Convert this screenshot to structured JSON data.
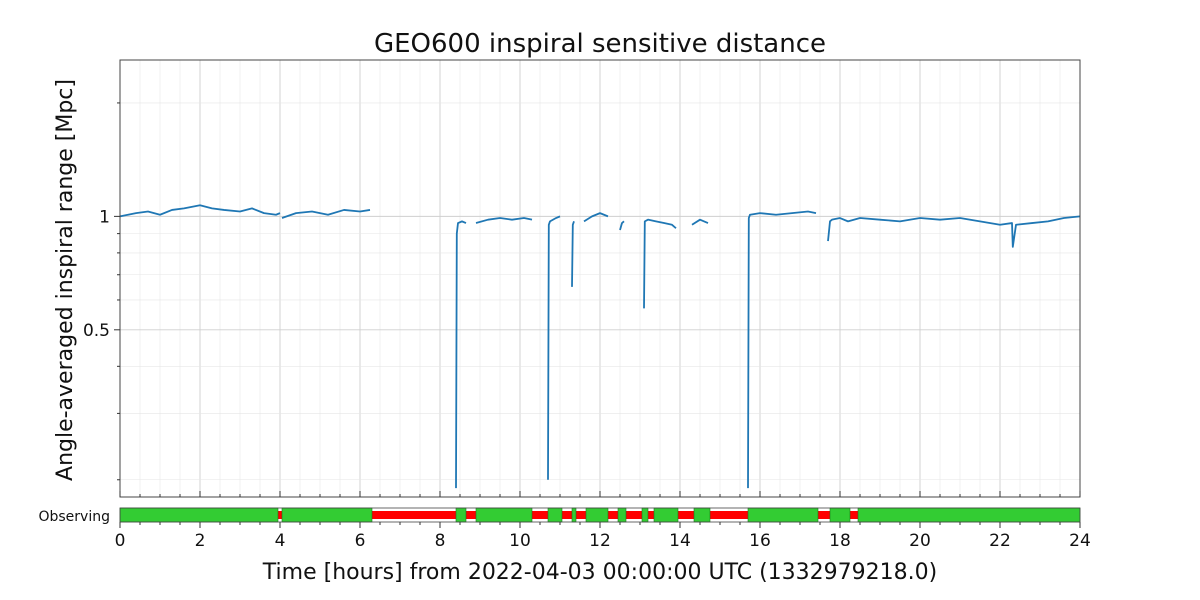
{
  "chart_data": {
    "type": "line",
    "title": "GEO600 inspiral sensitive distance",
    "xlabel": "Time [hours] from 2022-04-03 00:00:00 UTC (1332979218.0)",
    "ylabel": "Angle-averaged inspiral range [Mpc]",
    "xlim": [
      0,
      24
    ],
    "ylim": [
      0.18,
      2.6
    ],
    "yscale": "log",
    "grid": true,
    "x_ticks": [
      0,
      2,
      4,
      6,
      8,
      10,
      12,
      14,
      16,
      18,
      20,
      22,
      24
    ],
    "x_tick_labels": [
      "0",
      "2",
      "4",
      "6",
      "8",
      "10",
      "12",
      "14",
      "16",
      "18",
      "20",
      "22",
      "24"
    ],
    "y_ticks": [
      0.5,
      1
    ],
    "y_tick_labels": [
      "0.5",
      "1"
    ],
    "series": [
      {
        "color": "#1f77b4",
        "segments": [
          {
            "x": [
              0.0,
              0.2,
              0.4,
              0.7,
              1.0,
              1.3,
              1.6,
              2.0,
              2.3,
              2.6,
              3.0,
              3.3,
              3.6,
              3.9,
              4.0
            ],
            "y": [
              1.0,
              1.01,
              1.02,
              1.03,
              1.01,
              1.04,
              1.05,
              1.07,
              1.05,
              1.04,
              1.03,
              1.05,
              1.02,
              1.01,
              1.02
            ]
          },
          {
            "x": [
              4.05,
              4.4,
              4.8,
              5.2,
              5.6,
              6.0,
              6.25
            ],
            "y": [
              0.99,
              1.02,
              1.03,
              1.01,
              1.04,
              1.03,
              1.04
            ]
          },
          {
            "x": [
              8.4,
              8.42,
              8.45,
              8.55,
              8.65
            ],
            "y": [
              0.19,
              0.9,
              0.96,
              0.97,
              0.96
            ]
          },
          {
            "x": [
              8.9,
              9.2,
              9.5,
              9.8,
              10.1,
              10.3
            ],
            "y": [
              0.96,
              0.98,
              0.99,
              0.98,
              0.99,
              0.98
            ]
          },
          {
            "x": [
              10.7,
              10.72,
              10.75,
              10.9,
              11.0
            ],
            "y": [
              0.2,
              0.95,
              0.97,
              0.99,
              1.0
            ]
          },
          {
            "x": [
              11.3,
              11.32,
              11.35
            ],
            "y": [
              0.65,
              0.95,
              0.97
            ]
          },
          {
            "x": [
              11.6,
              11.8,
              12.0,
              12.2
            ],
            "y": [
              0.97,
              1.0,
              1.02,
              1.0
            ]
          },
          {
            "x": [
              12.5,
              12.55,
              12.6
            ],
            "y": [
              0.92,
              0.96,
              0.97
            ]
          },
          {
            "x": [
              13.1,
              13.12,
              13.2,
              13.4,
              13.6,
              13.8,
              13.9
            ],
            "y": [
              0.57,
              0.97,
              0.98,
              0.97,
              0.96,
              0.95,
              0.93
            ]
          },
          {
            "x": [
              14.3,
              14.5,
              14.7
            ],
            "y": [
              0.95,
              0.98,
              0.96
            ]
          },
          {
            "x": [
              15.7,
              15.72,
              15.75,
              16.0,
              16.4,
              16.8,
              17.2,
              17.4
            ],
            "y": [
              0.19,
              0.99,
              1.01,
              1.02,
              1.01,
              1.02,
              1.03,
              1.02
            ]
          },
          {
            "x": [
              17.7,
              17.75,
              17.8,
              18.0,
              18.2,
              18.5,
              19.0,
              19.5,
              20.0,
              20.5,
              21.0,
              21.5,
              22.0,
              22.3,
              22.32,
              22.4,
              22.8,
              23.2,
              23.6,
              24.0
            ],
            "y": [
              0.86,
              0.97,
              0.98,
              0.99,
              0.97,
              0.99,
              0.98,
              0.97,
              0.99,
              0.98,
              0.99,
              0.97,
              0.95,
              0.96,
              0.83,
              0.95,
              0.96,
              0.97,
              0.99,
              1.0
            ]
          }
        ]
      }
    ],
    "segment_bar": {
      "label": "Observing",
      "on_color": "#33cc33",
      "off_color": "#ff0000",
      "on_segments": [
        [
          0,
          3.95
        ],
        [
          4.05,
          6.3
        ],
        [
          8.4,
          8.65
        ],
        [
          8.9,
          10.3
        ],
        [
          10.7,
          11.05
        ],
        [
          11.3,
          11.4
        ],
        [
          11.65,
          12.2
        ],
        [
          12.45,
          12.65
        ],
        [
          13.05,
          13.2
        ],
        [
          13.35,
          13.95
        ],
        [
          14.35,
          14.75
        ],
        [
          15.7,
          17.45
        ],
        [
          17.75,
          18.25
        ],
        [
          18.45,
          24.0
        ]
      ]
    }
  }
}
